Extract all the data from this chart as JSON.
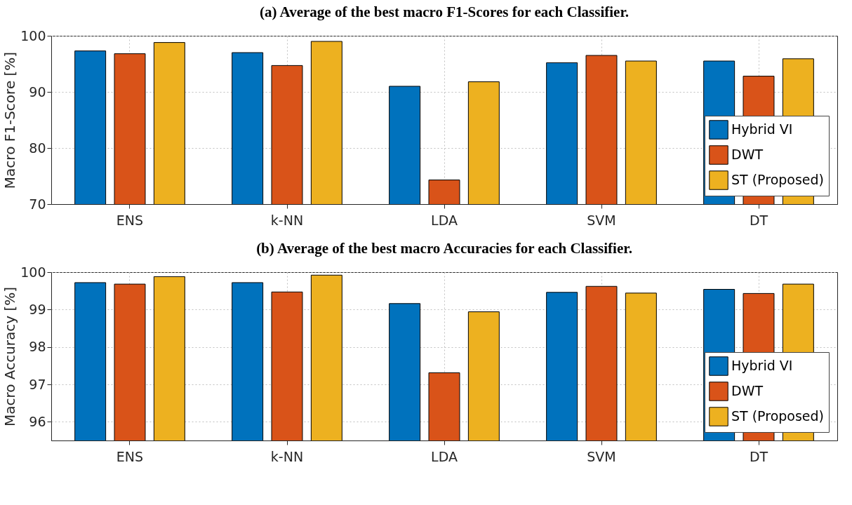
{
  "chart_data": [
    {
      "type": "bar",
      "title": "(a) Average of the best macro F1-Scores for each Classifier.",
      "ylabel": "Macro F1-Score [%]",
      "categories": [
        "ENS",
        "k-NN",
        "LDA",
        "SVM",
        "DT"
      ],
      "series": [
        {
          "name": "Hybrid VI",
          "color": "#0072bd",
          "values": [
            97.3,
            97.0,
            91.0,
            95.2,
            95.5
          ]
        },
        {
          "name": "DWT",
          "color": "#d95319",
          "values": [
            96.8,
            94.7,
            74.3,
            96.5,
            92.8
          ]
        },
        {
          "name": "ST (Proposed)",
          "color": "#edb120",
          "values": [
            98.8,
            99.0,
            91.8,
            95.5,
            95.9
          ]
        }
      ],
      "ylim": [
        70,
        100
      ],
      "yticks": [
        70,
        80,
        90,
        100
      ],
      "grid": true,
      "legend": "bottom right"
    },
    {
      "type": "bar",
      "title": "(b) Average of the best macro Accuracies for each Classifier.",
      "ylabel": "Macro Accuracy [%]",
      "categories": [
        "ENS",
        "k-NN",
        "LDA",
        "SVM",
        "DT"
      ],
      "series": [
        {
          "name": "Hybrid VI",
          "color": "#0072bd",
          "values": [
            99.72,
            99.72,
            99.16,
            99.46,
            99.54
          ]
        },
        {
          "name": "DWT",
          "color": "#d95319",
          "values": [
            99.68,
            99.47,
            97.31,
            99.62,
            99.43
          ]
        },
        {
          "name": "ST (Proposed)",
          "color": "#edb120",
          "values": [
            99.88,
            99.92,
            98.94,
            99.44,
            99.68
          ]
        }
      ],
      "ylim": [
        95.5,
        100
      ],
      "yticks": [
        96,
        97,
        98,
        99,
        100
      ],
      "grid": true,
      "legend": "bottom right"
    }
  ]
}
